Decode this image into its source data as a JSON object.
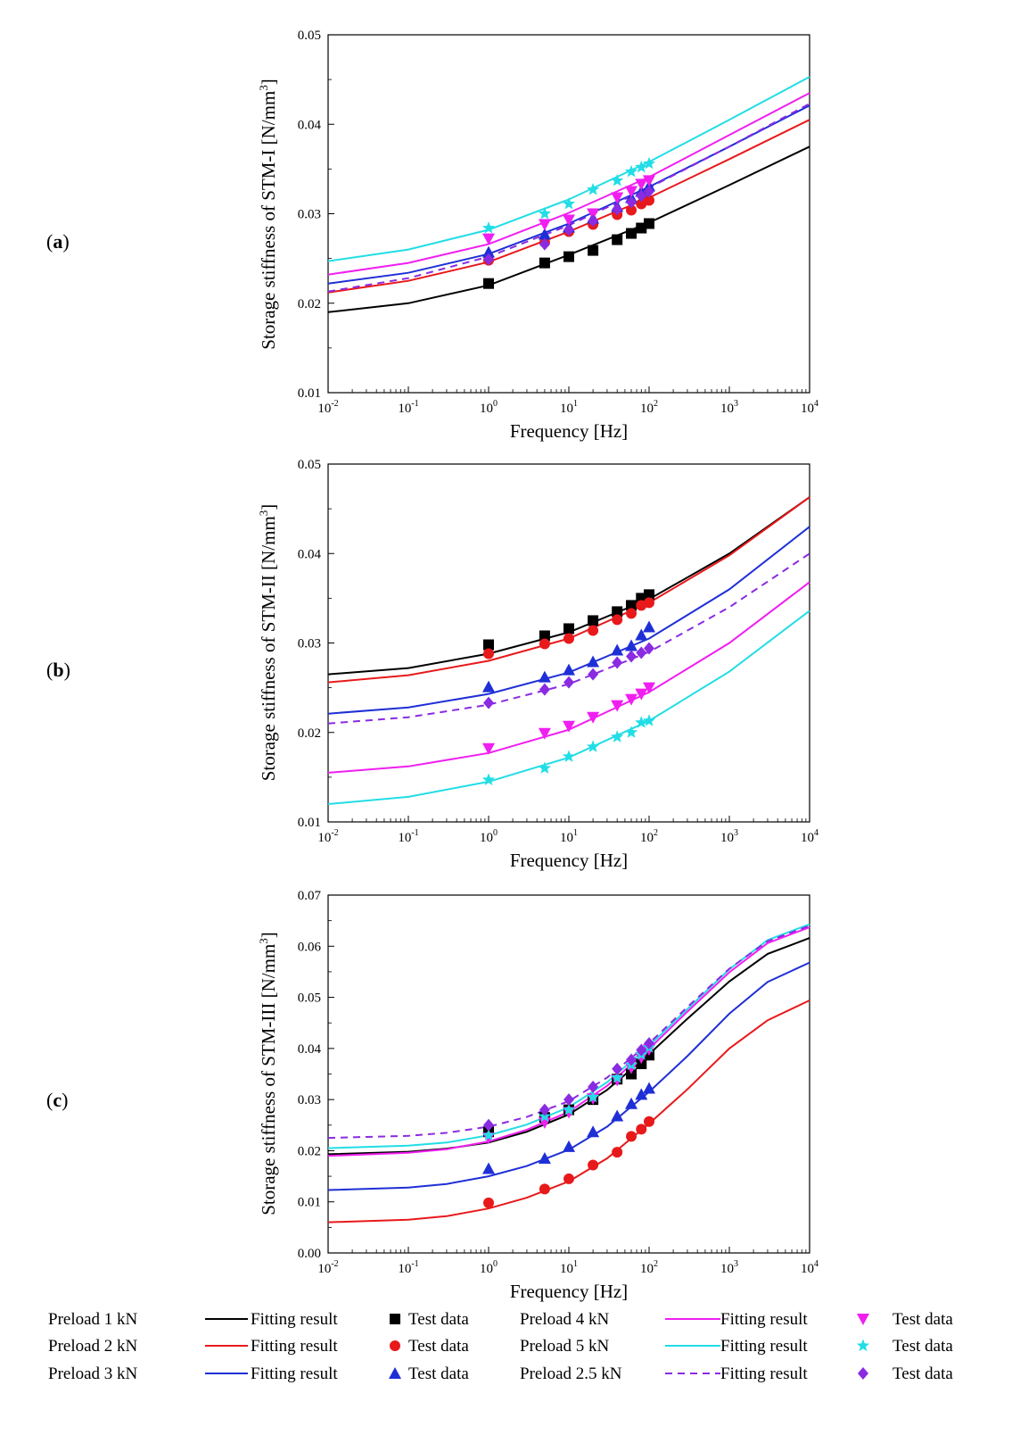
{
  "figure": {
    "panels": [
      {
        "label_open": "(",
        "label_letter": "a",
        "label_close": ")"
      },
      {
        "label_open": "(",
        "label_letter": "b",
        "label_close": ")"
      },
      {
        "label_open": "(",
        "label_letter": "c",
        "label_close": ")"
      }
    ],
    "legend": [
      {
        "preload": "Preload 1 kN",
        "fit": "Fitting result",
        "test": "Test data",
        "color": "#000000",
        "marker": "square",
        "dashed": false
      },
      {
        "preload": "Preload 2 kN",
        "fit": "Fitting result",
        "test": "Test data",
        "color": "#e8191b",
        "marker": "circle",
        "dashed": false
      },
      {
        "preload": "Preload 3 kN",
        "fit": "Fitting result",
        "test": "Test data",
        "color": "#1f2fd6",
        "marker": "triangle",
        "dashed": false
      },
      {
        "preload": "Preload 4 kN",
        "fit": "Fitting result",
        "test": "Test data",
        "color": "#f01ff0",
        "marker": "triangle-down",
        "dashed": false
      },
      {
        "preload": "Preload 5 kN",
        "fit": "Fitting result",
        "test": "Test data",
        "color": "#22dde6",
        "marker": "star",
        "dashed": false
      },
      {
        "preload": "Preload 2.5 kN",
        "fit": "Fitting result",
        "test": "Test data",
        "color": "#8a2be2",
        "marker": "diamond",
        "dashed": true
      }
    ]
  },
  "chart_data": [
    {
      "type": "scatter",
      "xlabel": "Frequency [Hz]",
      "ylabel": "Storage stiffness of STM-I [N/mm",
      "ylabel_sup": "3",
      "ylabel_end": "]",
      "xscale": "log",
      "xlim": [
        0.01,
        10000
      ],
      "ylim": [
        0.01,
        0.05
      ],
      "x_ticks": [
        {
          "base": "10",
          "exp": "-2"
        },
        {
          "base": "10",
          "exp": "-1"
        },
        {
          "base": "10",
          "exp": "0"
        },
        {
          "base": "10",
          "exp": "1"
        },
        {
          "base": "10",
          "exp": "2"
        },
        {
          "base": "10",
          "exp": "3"
        },
        {
          "base": "10",
          "exp": "4"
        }
      ],
      "y_ticks": [
        "0.01",
        "0.02",
        "0.03",
        "0.04",
        "0.05"
      ],
      "test_x": [
        1,
        5,
        10,
        20,
        40,
        60,
        80,
        100
      ],
      "series": [
        {
          "name": "Preload 1 kN",
          "fit": {
            "x": [
              0.01,
              0.1,
              1,
              10,
              100,
              1000,
              10000
            ],
            "y": [
              0.019,
              0.02,
              0.022,
              0.0254,
              0.029,
              0.0332,
              0.0375
            ]
          },
          "test": [
            0.0222,
            0.0245,
            0.0252,
            0.0259,
            0.0271,
            0.0278,
            0.0284,
            0.0289
          ]
        },
        {
          "name": "Preload 2 kN",
          "fit": {
            "x": [
              0.01,
              0.1,
              1,
              10,
              100,
              1000,
              10000
            ],
            "y": [
              0.0212,
              0.0225,
              0.0246,
              0.028,
              0.0318,
              0.0361,
              0.0405
            ]
          },
          "test": [
            0.0248,
            0.0268,
            0.028,
            0.0288,
            0.0299,
            0.0304,
            0.0311,
            0.0315
          ]
        },
        {
          "name": "Preload 3 kN",
          "fit": {
            "x": [
              0.01,
              0.1,
              1,
              10,
              100,
              1000,
              10000
            ],
            "y": [
              0.0222,
              0.0234,
              0.0255,
              0.0289,
              0.033,
              0.0375,
              0.0421
            ]
          },
          "test": [
            0.0257,
            0.0277,
            0.0285,
            0.0295,
            0.0308,
            0.0318,
            0.0325,
            0.0331
          ]
        },
        {
          "name": "Preload 4 kN",
          "fit": {
            "x": [
              0.01,
              0.1,
              1,
              10,
              100,
              1000,
              10000
            ],
            "y": [
              0.0232,
              0.0245,
              0.0266,
              0.0301,
              0.0341,
              0.0388,
              0.0435
            ]
          },
          "test": [
            0.0272,
            0.0288,
            0.0293,
            0.03,
            0.0318,
            0.0325,
            0.0333,
            0.0337
          ]
        },
        {
          "name": "Preload 5 kN",
          "fit": {
            "x": [
              0.01,
              0.1,
              1,
              10,
              100,
              1000,
              10000
            ],
            "y": [
              0.0247,
              0.026,
              0.0282,
              0.0316,
              0.0358,
              0.0405,
              0.0453
            ]
          },
          "test": [
            0.0284,
            0.03,
            0.0311,
            0.0327,
            0.0337,
            0.0347,
            0.0352,
            0.0356
          ]
        },
        {
          "name": "Preload 2.5 kN",
          "fit": {
            "x": [
              0.01,
              0.1,
              1,
              10,
              100,
              1000,
              10000
            ],
            "y": [
              0.0213,
              0.0228,
              0.0252,
              0.0287,
              0.0329,
              0.0375,
              0.0423
            ]
          },
          "test": [
            0.0249,
            0.0266,
            0.0282,
            0.0292,
            0.0305,
            0.0313,
            0.032,
            0.0325
          ]
        }
      ]
    },
    {
      "type": "scatter",
      "xlabel": "Frequency [Hz]",
      "ylabel": "Storage stiffness of STM-II [N/mm",
      "ylabel_sup": "3",
      "ylabel_end": "]",
      "xscale": "log",
      "xlim": [
        0.01,
        10000
      ],
      "ylim": [
        0.01,
        0.05
      ],
      "x_ticks": [
        {
          "base": "10",
          "exp": "-2"
        },
        {
          "base": "10",
          "exp": "-1"
        },
        {
          "base": "10",
          "exp": "0"
        },
        {
          "base": "10",
          "exp": "1"
        },
        {
          "base": "10",
          "exp": "2"
        },
        {
          "base": "10",
          "exp": "3"
        },
        {
          "base": "10",
          "exp": "4"
        }
      ],
      "y_ticks": [
        "0.01",
        "0.02",
        "0.03",
        "0.04",
        "0.05"
      ],
      "test_x": [
        1,
        5,
        10,
        20,
        40,
        60,
        80,
        100
      ],
      "series": [
        {
          "name": "Preload 1 kN",
          "fit": {
            "x": [
              0.01,
              0.1,
              1,
              10,
              100,
              1000,
              10000
            ],
            "y": [
              0.0265,
              0.0272,
              0.0288,
              0.0312,
              0.0349,
              0.04,
              0.0463
            ]
          },
          "test": [
            0.0298,
            0.0308,
            0.0316,
            0.0325,
            0.0335,
            0.0342,
            0.035,
            0.0354
          ]
        },
        {
          "name": "Preload 2 kN",
          "fit": {
            "x": [
              0.01,
              0.1,
              1,
              10,
              100,
              1000,
              10000
            ],
            "y": [
              0.0256,
              0.0264,
              0.028,
              0.0305,
              0.0345,
              0.0398,
              0.0463
            ]
          },
          "test": [
            0.0288,
            0.0299,
            0.0305,
            0.0314,
            0.0326,
            0.0333,
            0.0342,
            0.0345
          ]
        },
        {
          "name": "Preload 3 kN",
          "fit": {
            "x": [
              0.01,
              0.1,
              1,
              10,
              100,
              1000,
              10000
            ],
            "y": [
              0.0221,
              0.0228,
              0.0243,
              0.0267,
              0.0305,
              0.036,
              0.043
            ]
          },
          "test": [
            0.0251,
            0.0262,
            0.027,
            0.0279,
            0.0292,
            0.0297,
            0.0309,
            0.0318
          ]
        },
        {
          "name": "Preload 4 kN",
          "fit": {
            "x": [
              0.01,
              0.1,
              1,
              10,
              100,
              1000,
              10000
            ],
            "y": [
              0.0155,
              0.0162,
              0.0177,
              0.0203,
              0.0245,
              0.03,
              0.0368
            ]
          },
          "test": [
            0.0182,
            0.0199,
            0.0207,
            0.0217,
            0.023,
            0.0237,
            0.0243,
            0.025
          ]
        },
        {
          "name": "Preload 5 kN",
          "fit": {
            "x": [
              0.01,
              0.1,
              1,
              10,
              100,
              1000,
              10000
            ],
            "y": [
              0.012,
              0.0128,
              0.0145,
              0.0172,
              0.0213,
              0.0268,
              0.0336
            ]
          },
          "test": [
            0.0147,
            0.016,
            0.0173,
            0.0184,
            0.0195,
            0.02,
            0.0211,
            0.0213
          ]
        },
        {
          "name": "Preload 2.5 kN",
          "fit": {
            "x": [
              0.01,
              0.1,
              1,
              10,
              100,
              1000,
              10000
            ],
            "y": [
              0.021,
              0.0217,
              0.0231,
              0.0254,
              0.029,
              0.034,
              0.04
            ]
          },
          "test": [
            0.0233,
            0.0248,
            0.0256,
            0.0265,
            0.0278,
            0.0285,
            0.0289,
            0.0294
          ]
        }
      ]
    },
    {
      "type": "scatter",
      "xlabel": "Frequency [Hz]",
      "ylabel": "Storage stiffness of STM-III [N/mm",
      "ylabel_sup": "3",
      "ylabel_end": "]",
      "xscale": "log",
      "xlim": [
        0.01,
        10000
      ],
      "ylim": [
        0.0,
        0.07
      ],
      "x_ticks": [
        {
          "base": "10",
          "exp": "-2"
        },
        {
          "base": "10",
          "exp": "-1"
        },
        {
          "base": "10",
          "exp": "0"
        },
        {
          "base": "10",
          "exp": "1"
        },
        {
          "base": "10",
          "exp": "2"
        },
        {
          "base": "10",
          "exp": "3"
        },
        {
          "base": "10",
          "exp": "4"
        }
      ],
      "y_ticks": [
        "0.00",
        "0.01",
        "0.02",
        "0.03",
        "0.04",
        "0.05",
        "0.06",
        "0.07"
      ],
      "test_x": [
        1,
        5,
        10,
        20,
        40,
        60,
        80,
        100
      ],
      "series": [
        {
          "name": "Preload 1 kN",
          "fit": {
            "x": [
              0.01,
              0.1,
              0.3,
              1,
              3,
              10,
              30,
              100,
              300,
              1000,
              3000,
              10000
            ],
            "y": [
              0.0193,
              0.0198,
              0.0204,
              0.0216,
              0.0237,
              0.0271,
              0.0319,
              0.0389,
              0.0458,
              0.0531,
              0.0585,
              0.0616
            ]
          },
          "test": [
            0.0237,
            0.0265,
            0.028,
            0.03,
            0.034,
            0.035,
            0.037,
            0.0387
          ]
        },
        {
          "name": "Preload 2 kN",
          "fit": {
            "x": [
              0.01,
              0.1,
              0.3,
              1,
              3,
              10,
              30,
              100,
              300,
              1000,
              3000,
              10000
            ],
            "y": [
              0.006,
              0.0065,
              0.0072,
              0.0087,
              0.0108,
              0.014,
              0.0185,
              0.0253,
              0.032,
              0.04,
              0.0455,
              0.0494
            ]
          },
          "test": [
            0.0098,
            0.0125,
            0.0145,
            0.0172,
            0.0197,
            0.0228,
            0.0242,
            0.0257
          ]
        },
        {
          "name": "Preload 3 kN",
          "fit": {
            "x": [
              0.01,
              0.1,
              0.3,
              1,
              3,
              10,
              30,
              100,
              300,
              1000,
              3000,
              10000
            ],
            "y": [
              0.0123,
              0.0128,
              0.0135,
              0.015,
              0.017,
              0.0202,
              0.0247,
              0.0315,
              0.0385,
              0.0468,
              0.053,
              0.0568
            ]
          },
          "test": [
            0.0165,
            0.0185,
            0.0208,
            0.0237,
            0.0268,
            0.0292,
            0.031,
            0.0322
          ]
        },
        {
          "name": "Preload 4 kN",
          "fit": {
            "x": [
              0.01,
              0.1,
              0.3,
              1,
              3,
              10,
              30,
              100,
              300,
              1000,
              3000,
              10000
            ],
            "y": [
              0.019,
              0.0196,
              0.0203,
              0.0218,
              0.0241,
              0.0276,
              0.0327,
              0.0399,
              0.0472,
              0.0549,
              0.0606,
              0.0637
            ]
          },
          "test": [
            0.0225,
            0.0255,
            0.0275,
            0.0302,
            0.0338,
            0.0362,
            0.0382,
            0.0398
          ]
        },
        {
          "name": "Preload 5 kN",
          "fit": {
            "x": [
              0.01,
              0.1,
              0.3,
              1,
              3,
              10,
              30,
              100,
              300,
              1000,
              3000,
              10000
            ],
            "y": [
              0.0205,
              0.021,
              0.0216,
              0.023,
              0.0251,
              0.0285,
              0.0334,
              0.0405,
              0.0477,
              0.0555,
              0.0612,
              0.0643
            ]
          },
          "test": [
            0.023,
            0.0267,
            0.028,
            0.0305,
            0.0343,
            0.0368,
            0.0388,
            0.0402
          ]
        },
        {
          "name": "Preload 2.5 kN",
          "fit": {
            "x": [
              0.01,
              0.1,
              0.3,
              1,
              3,
              10,
              30,
              100,
              300,
              1000,
              3000,
              10000
            ],
            "y": [
              0.0225,
              0.0229,
              0.0235,
              0.0247,
              0.0266,
              0.0297,
              0.0343,
              0.041,
              0.0481,
              0.0556,
              0.061,
              0.064
            ]
          },
          "test": [
            0.025,
            0.028,
            0.03,
            0.0325,
            0.036,
            0.0378,
            0.0397,
            0.041
          ]
        }
      ]
    }
  ]
}
